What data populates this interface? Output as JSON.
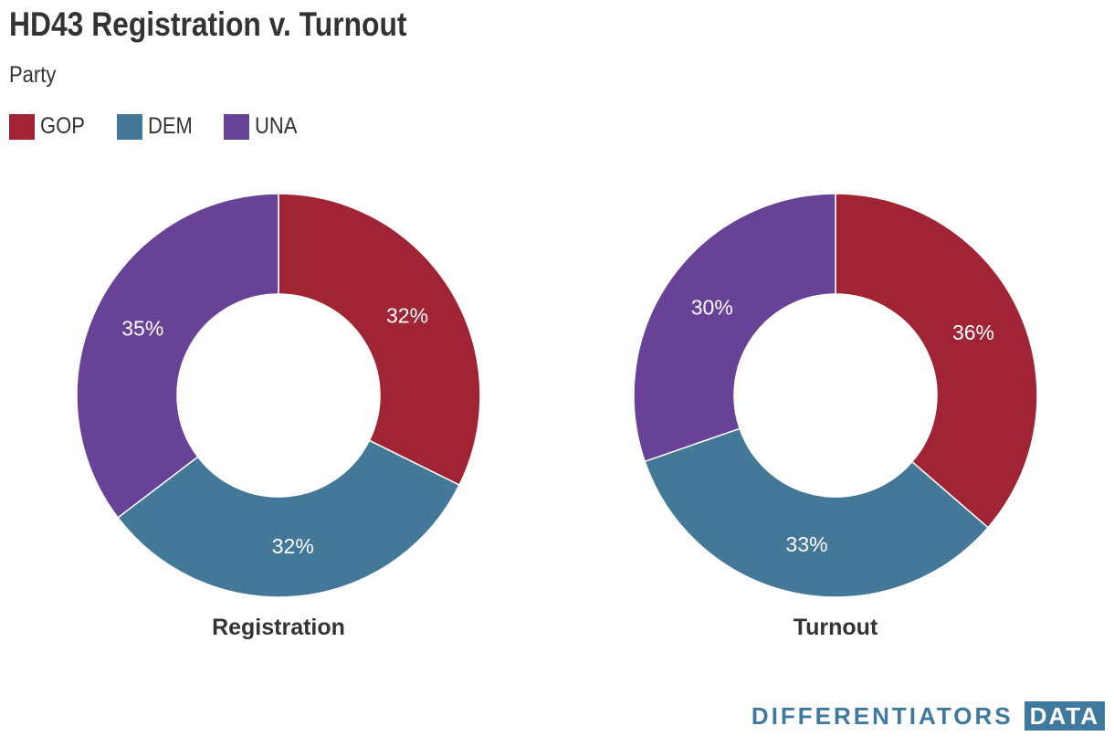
{
  "title": "HD43 Registration v. Turnout",
  "subtitle": "Party",
  "legend": [
    {
      "label": "GOP",
      "color": "#a02433"
    },
    {
      "label": "DEM",
      "color": "#447898"
    },
    {
      "label": "UNA",
      "color": "#684296"
    }
  ],
  "chart_data": [
    {
      "type": "pie",
      "title": "Registration",
      "categories": [
        "GOP",
        "DEM",
        "UNA"
      ],
      "values": [
        32,
        32,
        35
      ],
      "value_labels": [
        "32%",
        "32%",
        "35%"
      ],
      "colors": [
        "#a02433",
        "#447898",
        "#684296"
      ],
      "legend": "top-left"
    },
    {
      "type": "pie",
      "title": "Turnout",
      "categories": [
        "GOP",
        "DEM",
        "UNA"
      ],
      "values": [
        36,
        33,
        30
      ],
      "value_labels": [
        "36%",
        "33%",
        "30%"
      ],
      "colors": [
        "#a02433",
        "#447898",
        "#684296"
      ],
      "legend": "top-left"
    }
  ],
  "branding": {
    "name": "DIFFERENTIATORS",
    "tag": "DATA"
  }
}
